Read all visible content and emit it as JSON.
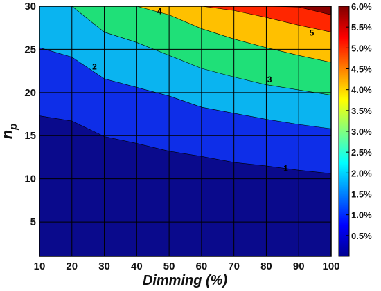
{
  "chart_data": {
    "type": "contour",
    "xlabel": "Dimming (%)",
    "ylabel": "n",
    "ylabel_subscript": "p",
    "xlim": [
      10,
      100
    ],
    "ylim": [
      1,
      30
    ],
    "x_ticks": [
      "10",
      "20",
      "30",
      "40",
      "50",
      "60",
      "70",
      "80",
      "90",
      "100"
    ],
    "y_ticks": [
      "5",
      "10",
      "15",
      "20",
      "25",
      "30"
    ],
    "grid": true,
    "x": [
      10,
      20,
      30,
      40,
      50,
      60,
      70,
      80,
      90,
      100
    ],
    "contour_levels_percent": [
      0.5,
      1,
      1.5,
      2,
      2.5,
      3,
      3.5,
      4,
      4.5,
      5,
      5.5,
      6
    ],
    "filled_region_boundaries": [
      {
        "level": "1%",
        "y": [
          17.3,
          16.7,
          14.9,
          14.1,
          13.2,
          12.6,
          11.9,
          11.5,
          11.0,
          10.6
        ]
      },
      {
        "level": "2%",
        "y": [
          25.2,
          24.1,
          21.6,
          20.6,
          19.6,
          18.3,
          17.6,
          16.9,
          16.3,
          15.8
        ]
      },
      {
        "level": "3%",
        "y": [
          30.0,
          30.0,
          27.0,
          25.8,
          24.3,
          22.8,
          21.8,
          20.9,
          20.3,
          19.7
        ]
      },
      {
        "level": "4%",
        "y": [
          30.0,
          30.0,
          30.0,
          30.0,
          29.0,
          27.4,
          26.2,
          25.2,
          24.3,
          23.5
        ]
      },
      {
        "level": "5%",
        "y": [
          30.0,
          30.0,
          30.0,
          30.0,
          30.0,
          30.0,
          29.5,
          28.7,
          27.8,
          27.0
        ]
      },
      {
        "level": "5.5%",
        "y": [
          30.0,
          30.0,
          30.0,
          30.0,
          30.0,
          30.0,
          30.0,
          30.0,
          29.9,
          29.0
        ]
      }
    ],
    "region_colors": [
      "#0a0a8c",
      "#0e2ee8",
      "#0ab4f0",
      "#1fe078",
      "#ffc000",
      "#ff2600",
      "#8b0000"
    ],
    "contour_labels": [
      {
        "text": "1",
        "x": 86,
        "y": 11.2
      },
      {
        "text": "2",
        "x": 27,
        "y": 23.0
      },
      {
        "text": "3",
        "x": 81,
        "y": 21.5
      },
      {
        "text": "4",
        "x": 47,
        "y": 29.4
      },
      {
        "text": "5",
        "x": 94,
        "y": 26.9
      }
    ],
    "colorbar": {
      "range": [
        0,
        6.0
      ],
      "tick_values": [
        0.5,
        1.0,
        1.5,
        2.0,
        2.5,
        3.0,
        3.5,
        4.0,
        4.5,
        5.0,
        5.5,
        6.0
      ],
      "tick_labels": [
        "0.5%",
        "1.0%",
        "1.5%",
        "2.0%",
        "2.5%",
        "3.0%",
        "3.5%",
        "4.0%",
        "4.5%",
        "5.0%",
        "5.5%",
        "6.0%"
      ],
      "colormap": [
        "#00008f",
        "#0000ff",
        "#0080ff",
        "#00ffff",
        "#80ff80",
        "#ffff00",
        "#ff8000",
        "#ff0000",
        "#800000"
      ]
    }
  }
}
